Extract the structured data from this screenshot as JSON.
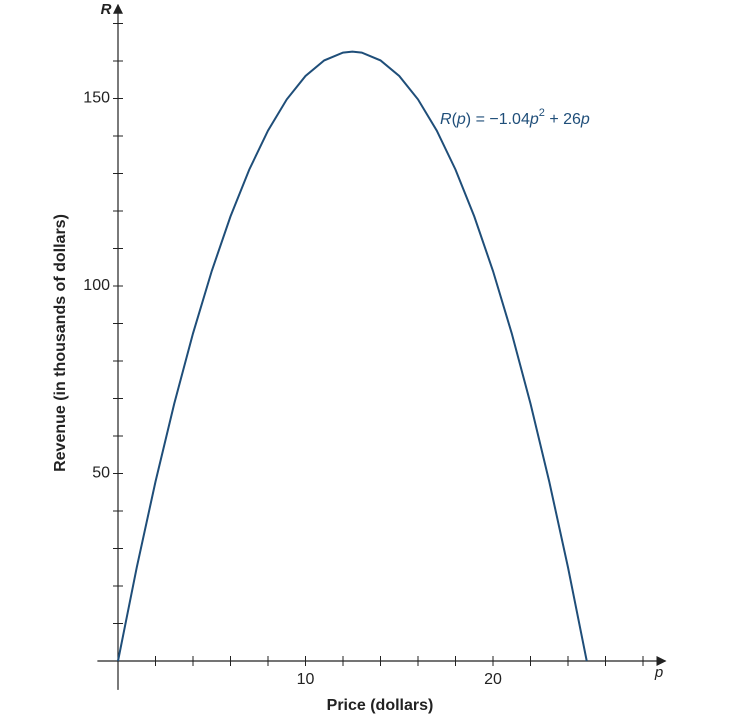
{
  "chart_data": {
    "type": "line",
    "x_label": "Price (dollars)",
    "y_label": "Revenue (in thousands of dollars)",
    "x_axis_letter": "p",
    "y_axis_letter": "R",
    "annotation": [
      "R",
      "(",
      "p",
      ") = −1.04",
      "p",
      "2",
      " + 26",
      "p"
    ],
    "x": [
      0,
      1,
      2,
      3,
      4,
      5,
      6,
      7,
      8,
      9,
      10,
      11,
      12,
      12.5,
      13,
      14,
      15,
      16,
      17,
      18,
      19,
      20,
      21,
      22,
      23,
      24,
      25
    ],
    "values": [
      0,
      24.96,
      47.84,
      68.64,
      87.36,
      104,
      118.56,
      131.04,
      141.44,
      149.76,
      156,
      160.16,
      162.24,
      162.5,
      162.24,
      160.16,
      156,
      149.76,
      141.44,
      131.04,
      118.56,
      104,
      87.36,
      68.64,
      47.84,
      24.96,
      0
    ],
    "color": "#1f4e79",
    "xlim": [
      -1.1,
      29.2
    ],
    "ylim": [
      -7.7,
      175
    ],
    "xticks": [
      10,
      20
    ],
    "yticks": [
      50,
      100,
      150
    ],
    "x_minor_ticks": [
      2,
      4,
      6,
      8,
      12,
      14,
      16,
      18,
      22,
      24,
      26,
      28
    ],
    "y_minor_ticks": [
      10,
      20,
      30,
      40,
      60,
      70,
      80,
      90,
      110,
      120,
      130,
      140,
      160,
      170
    ],
    "grid": false
  }
}
